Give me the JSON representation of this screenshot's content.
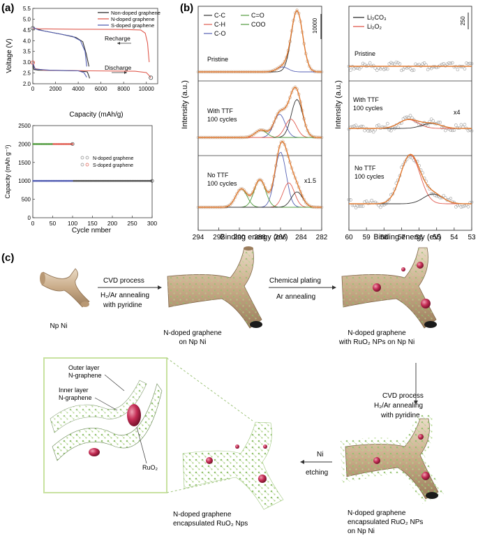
{
  "panel_labels": {
    "a": "(a)",
    "b": "(b)",
    "c": "(c)"
  },
  "colors": {
    "black": "#2f2f2f",
    "red": "#e05a4e",
    "blue": "#5560b4",
    "green": "#4f9a3c",
    "tan": "#cdb596",
    "ruo2": "#b8244a",
    "node": "#cfe6a8"
  },
  "chart_data": [
    {
      "type": "line",
      "xlabel": "Capacity (mAh/g)",
      "ylabel": "Voltage (V)",
      "xlim": [
        0,
        11000
      ],
      "ylim": [
        2.0,
        5.5
      ],
      "xticks": [
        "0",
        "2000",
        "4000",
        "6000",
        "8000",
        "10000"
      ],
      "yticks": [
        "2.0",
        "2.5",
        "3.0",
        "3.5",
        "4.0",
        "4.5",
        "5.0",
        "5.5"
      ],
      "legend": [
        "Non-doped graphene",
        "N-doped graphene",
        "S-doped graphene"
      ],
      "legend_position": "top-right",
      "annotations": [
        "Recharge",
        "Discharge"
      ],
      "series": [
        {
          "name": "Non-doped graphene",
          "color": "#2f2f2f",
          "discharge": [
            [
              0,
              2.95
            ],
            [
              100,
              2.66
            ],
            [
              500,
              2.63
            ],
            [
              2000,
              2.62
            ],
            [
              4000,
              2.6
            ],
            [
              4800,
              2.55
            ],
            [
              4950,
              2.35
            ],
            [
              5000,
              2.25
            ]
          ],
          "charge": [
            [
              0,
              4.6
            ],
            [
              300,
              4.55
            ],
            [
              1000,
              4.45
            ],
            [
              2500,
              4.3
            ],
            [
              3800,
              4.15
            ],
            [
              4400,
              3.95
            ],
            [
              4700,
              3.4
            ],
            [
              4950,
              2.8
            ]
          ]
        },
        {
          "name": "N-doped graphene",
          "color": "#e05a4e",
          "discharge": [
            [
              0,
              2.98
            ],
            [
              200,
              2.7
            ],
            [
              1000,
              2.63
            ],
            [
              5000,
              2.6
            ],
            [
              9000,
              2.58
            ],
            [
              10000,
              2.52
            ],
            [
              10250,
              2.38
            ],
            [
              10400,
              2.28
            ]
          ],
          "charge": [
            [
              0,
              4.58
            ],
            [
              500,
              4.55
            ],
            [
              4000,
              4.53
            ],
            [
              8000,
              4.52
            ],
            [
              9500,
              4.5
            ],
            [
              9900,
              4.35
            ],
            [
              10100,
              3.9
            ],
            [
              10250,
              3.0
            ]
          ]
        },
        {
          "name": "S-doped graphene",
          "color": "#5560b4",
          "discharge": [
            [
              0,
              2.95
            ],
            [
              200,
              2.68
            ],
            [
              1500,
              2.63
            ],
            [
              4000,
              2.6
            ],
            [
              4500,
              2.52
            ],
            [
              4750,
              2.3
            ]
          ],
          "charge": [
            [
              0,
              4.62
            ],
            [
              500,
              4.5
            ],
            [
              2000,
              4.35
            ],
            [
              3500,
              4.2
            ],
            [
              4200,
              4.0
            ],
            [
              4600,
              3.5
            ],
            [
              4750,
              2.8
            ]
          ]
        }
      ]
    },
    {
      "type": "scatter",
      "xlabel": "Cycle nmber",
      "ylabel": "Capacity (mAh g⁻¹)",
      "xlim": [
        0,
        300
      ],
      "ylim": [
        0,
        2500
      ],
      "xticks": [
        "0",
        "50",
        "100",
        "150",
        "200",
        "250",
        "300"
      ],
      "yticks": [
        "0",
        "500",
        "1000",
        "1500",
        "2000",
        "2500"
      ],
      "legend": [
        "N-doped graphene",
        "S-doped graphene"
      ],
      "legend_position": "center-right",
      "series": [
        {
          "name": "N-doped graphene",
          "x_range": [
            1,
            300
          ],
          "value": 1000
        },
        {
          "name": "S-doped graphene",
          "x_range": [
            1,
            100
          ],
          "value": 2000
        }
      ]
    },
    {
      "type": "line",
      "xlabel": "Binding energy (eV)",
      "ylabel": "Intensity (a.u.)",
      "xlim": [
        294,
        282
      ],
      "xticks": [
        "294",
        "292",
        "290",
        "288",
        "286",
        "284",
        "282"
      ],
      "legend": [
        "C-C",
        "C=O",
        "C-H",
        "COO",
        "C-O"
      ],
      "scale_bar": "10000",
      "rows": [
        {
          "label": "Pristine",
          "peaks": [
            {
              "component": "C-C",
              "center": 284.4,
              "height": 1.0
            },
            {
              "component": "C-O",
              "center": 285.8,
              "height": 0.08
            }
          ]
        },
        {
          "label_line1": "With TTF",
          "label_line2": "100 cycles",
          "peaks": [
            {
              "component": "C-C",
              "center": 284.4,
              "height": 0.62
            },
            {
              "component": "C-O",
              "center": 286.1,
              "height": 0.38
            },
            {
              "component": "C-H",
              "center": 285.0,
              "height": 0.3
            },
            {
              "component": "C=O",
              "center": 287.9,
              "height": 0.12
            }
          ]
        },
        {
          "label_line1": "No TTF",
          "label_line2": "100 cycles",
          "multiplier": "x1.5",
          "peaks": [
            {
              "component": "C-O",
              "center": 286.0,
              "height": 0.9
            },
            {
              "component": "C-H",
              "center": 285.2,
              "height": 0.4
            },
            {
              "component": "C=O",
              "center": 288.0,
              "height": 0.45
            },
            {
              "component": "COO",
              "center": 289.8,
              "height": 0.3
            },
            {
              "component": "C-C",
              "center": 284.4,
              "height": 0.25
            }
          ]
        }
      ]
    },
    {
      "type": "line",
      "xlabel": "Binding energy (eV)",
      "ylabel": "Intensity (a.u.)",
      "xlim": [
        60,
        53
      ],
      "xticks": [
        "60",
        "59",
        "58",
        "57",
        "56",
        "55",
        "54",
        "53"
      ],
      "legend": [
        "Li₂CO₃",
        "Li₂O₂"
      ],
      "scale_bar": "250",
      "rows": [
        {
          "label": "Pristine",
          "peaks": []
        },
        {
          "label_line1": "With TTF",
          "label_line2": "100 cycles",
          "multiplier": "x4",
          "peaks": [
            {
              "component": "Li₂O₂",
              "center": 56.6,
              "height": 0.18
            },
            {
              "component": "Li₂CO₃",
              "center": 55.3,
              "height": 0.1
            }
          ]
        },
        {
          "label_line1": "No TTF",
          "label_line2": "100 cycles",
          "peaks": [
            {
              "component": "Li₂O₂",
              "center": 56.5,
              "height": 1.0
            },
            {
              "component": "Li₂CO₃",
              "center": 55.2,
              "height": 0.2
            }
          ]
        }
      ]
    }
  ],
  "schematic": {
    "labels": {
      "np_ni": "Np Ni",
      "step1_line1": "CVD process",
      "step1_line2": "H₂/Ar  annealing",
      "step1_line3": "with pyridine",
      "stage2_line1": "N-doped graphene",
      "stage2_line2": "on  Np Ni",
      "step2_line1": "Chemical plating",
      "step2_line2": "Ar annealing",
      "stage3_line1": "N-doped graphene",
      "stage3_line2": "with RuO₂ NPs  on  Np Ni",
      "step3_line1": "CVD process",
      "step3_line2": "H₂/Ar  annealing",
      "step3_line3": "with pyridine",
      "stage4_line1": "N-doped graphene",
      "stage4_line2": "encapsulated RuO₂ NPs",
      "stage4_line3": "on  Np Ni",
      "step4_line1": "Ni",
      "step4_line2": "etching",
      "stage5_line1": "N-doped graphene",
      "stage5_line2": "encapsulated RuO₂ Nps",
      "zoom_outer1": "Outer layer",
      "zoom_outer2": "N-graphene",
      "zoom_inner1": "Inner layer",
      "zoom_inner2": "N-graphene",
      "zoom_ruo2": "RuO₂"
    }
  }
}
